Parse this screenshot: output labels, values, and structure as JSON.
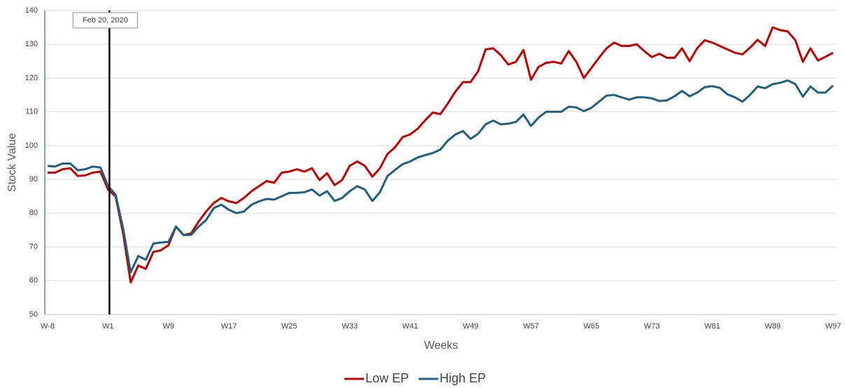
{
  "chart_data": {
    "type": "line",
    "xlabel": "Weeks",
    "ylabel": "Stock Value",
    "categories": [
      "W-8",
      null,
      null,
      null,
      null,
      null,
      null,
      null,
      "W1",
      null,
      null,
      null,
      null,
      null,
      null,
      null,
      "W9",
      null,
      null,
      null,
      null,
      null,
      null,
      null,
      "W17",
      null,
      null,
      null,
      null,
      null,
      null,
      null,
      "W25",
      null,
      null,
      null,
      null,
      null,
      null,
      null,
      "W33",
      null,
      null,
      null,
      null,
      null,
      null,
      null,
      "W41",
      null,
      null,
      null,
      null,
      null,
      null,
      null,
      "W49",
      null,
      null,
      null,
      null,
      null,
      null,
      null,
      "W57",
      null,
      null,
      null,
      null,
      null,
      null,
      null,
      "W65",
      null,
      null,
      null,
      null,
      null,
      null,
      null,
      "W73",
      null,
      null,
      null,
      null,
      null,
      null,
      null,
      "W81",
      null,
      null,
      null,
      null,
      null,
      null,
      null,
      "W89",
      null,
      null,
      null,
      null,
      null,
      null,
      null,
      "W97"
    ],
    "series": [
      {
        "name": "Low EP",
        "color": "#c00000",
        "values": [
          92,
          92,
          93,
          93.3,
          91,
          91.2,
          92,
          92.3,
          87,
          85,
          74,
          59.5,
          64.5,
          63.5,
          68.5,
          69,
          70.5,
          76,
          73.5,
          74,
          77.5,
          80.5,
          83,
          84.5,
          83.5,
          83,
          84.5,
          86.5,
          88,
          89.5,
          89,
          92,
          92.3,
          93,
          92.3,
          93.3,
          89.8,
          91.8,
          88.3,
          89.8,
          94,
          95.3,
          94,
          90.8,
          93.3,
          97.5,
          99.5,
          102.5,
          103.3,
          105,
          107.5,
          109.8,
          109.3,
          112.5,
          116,
          118.8,
          118.8,
          122,
          128.5,
          128.8,
          126.8,
          124,
          124.8,
          128.3,
          119.5,
          123.3,
          124.5,
          124.8,
          124.3,
          128,
          124.8,
          120,
          123,
          126,
          128.8,
          130.5,
          129.5,
          129.5,
          130,
          128,
          126.2,
          127.2,
          126,
          126,
          128.8,
          125,
          128.8,
          131.2,
          130.5,
          129.5,
          128.5,
          127.5,
          127,
          129,
          131.3,
          129.5,
          135,
          134.2,
          133.8,
          131.2,
          124.8,
          128.8,
          125.2,
          126.3,
          127.5
        ]
      },
      {
        "name": "High EP",
        "color": "#1f5f7f",
        "values": [
          94,
          93.8,
          94.7,
          94.7,
          92.7,
          93,
          93.8,
          93.5,
          88,
          85.5,
          75.5,
          62.5,
          67.3,
          66.2,
          71,
          71.3,
          71.5,
          76,
          73.5,
          73.6,
          76,
          78,
          81.5,
          82.5,
          81,
          80,
          80.5,
          82.5,
          83.5,
          84.2,
          84,
          85,
          86,
          86,
          86.2,
          87,
          85.2,
          86.5,
          83.6,
          84.5,
          86.5,
          88,
          87,
          83.6,
          86.2,
          91,
          92.8,
          94.5,
          95.3,
          96.5,
          97.2,
          97.8,
          98.8,
          101.5,
          103.3,
          104.3,
          102,
          103.5,
          106.3,
          107.4,
          106.3,
          106.5,
          107,
          109.2,
          105.8,
          108.3,
          110,
          110,
          110,
          111.5,
          111.3,
          110.2,
          111.2,
          113,
          114.8,
          115,
          114.3,
          113.6,
          114.3,
          114.3,
          114,
          113.2,
          113.4,
          114.6,
          116.2,
          114.6,
          115.7,
          117.3,
          117.6,
          117.1,
          115.2,
          114.3,
          113,
          115,
          117.5,
          117,
          118.2,
          118.6,
          119.3,
          118.2,
          114.5,
          117.5,
          115.7,
          115.7,
          117.8
        ]
      }
    ],
    "annotation": {
      "text": "Feb 20, 2020",
      "x": "W1"
    },
    "ylim": [
      50,
      140
    ],
    "yticks": [
      50,
      60,
      70,
      80,
      90,
      100,
      110,
      120,
      130,
      140
    ],
    "grid": true,
    "legend": "bottom"
  }
}
